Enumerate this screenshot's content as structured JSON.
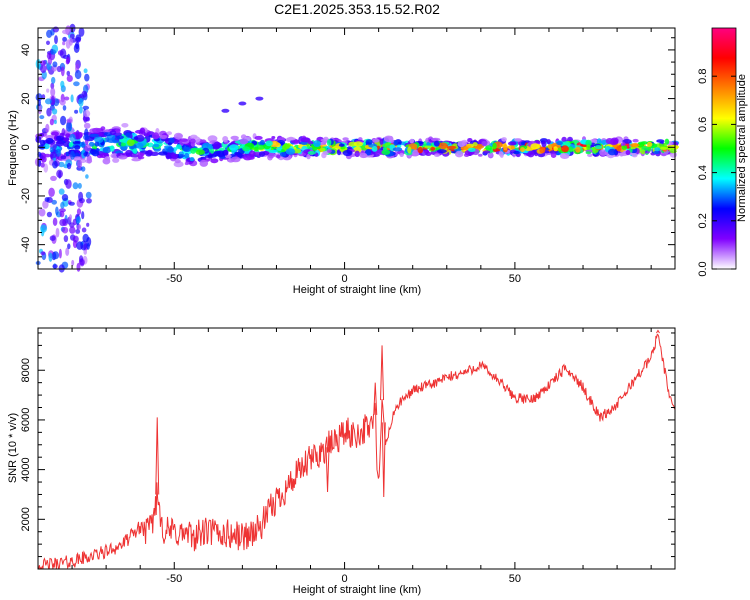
{
  "figure_title": "C2E1.2025.353.15.52.R02",
  "chart_data": [
    {
      "type": "heatmap",
      "title": "",
      "xlabel": "Height of straight line (km)",
      "ylabel": "Frequency (Hz)",
      "xlim": [
        -90,
        97
      ],
      "ylim": [
        -50,
        49
      ],
      "xticks": [
        -50,
        0,
        50
      ],
      "yticks": [
        -40,
        -20,
        0,
        20,
        40
      ],
      "colorbar": {
        "label": "Normalized spectral amplitude",
        "range": [
          0,
          1
        ],
        "ticks": [
          "0.0",
          "0.2",
          "0.4",
          "0.6",
          "0.8"
        ],
        "colors": [
          "#ffffff",
          "#8000ff",
          "#0000ff",
          "#00ffff",
          "#00ff00",
          "#ffff00",
          "#ff8000",
          "#ff0000",
          "#ff0080"
        ]
      },
      "ridge": [
        {
          "x": -85,
          "center": 0,
          "halfwidth": 5,
          "peak": 0.35
        },
        {
          "x": -75,
          "center": 1,
          "halfwidth": 5,
          "peak": 0.45
        },
        {
          "x": -65,
          "center": 2,
          "halfwidth": 5,
          "peak": 0.5
        },
        {
          "x": -55,
          "center": 1,
          "halfwidth": 4,
          "peak": 0.45
        },
        {
          "x": -45,
          "center": -2,
          "halfwidth": 4,
          "peak": 0.45
        },
        {
          "x": -35,
          "center": -1,
          "halfwidth": 3,
          "peak": 0.5
        },
        {
          "x": -25,
          "center": 0,
          "halfwidth": 3,
          "peak": 0.6
        },
        {
          "x": -15,
          "center": 0,
          "halfwidth": 2.5,
          "peak": 0.65
        },
        {
          "x": -5,
          "center": 0,
          "halfwidth": 2,
          "peak": 0.75
        },
        {
          "x": 5,
          "center": 0,
          "halfwidth": 2,
          "peak": 0.75
        },
        {
          "x": 15,
          "center": 0,
          "halfwidth": 2,
          "peak": 0.8
        },
        {
          "x": 30,
          "center": 0,
          "halfwidth": 1.8,
          "peak": 0.85
        },
        {
          "x": 50,
          "center": 0,
          "halfwidth": 1.8,
          "peak": 0.85
        },
        {
          "x": 70,
          "center": 0,
          "halfwidth": 1.8,
          "peak": 0.85
        },
        {
          "x": 95,
          "center": 0,
          "halfwidth": 1.8,
          "peak": 0.85
        }
      ],
      "scatter": {
        "x_range": [
          -90,
          -75
        ],
        "y_range": [
          -50,
          49
        ],
        "amplitude_range": [
          0.05,
          0.35
        ]
      },
      "side_feature": [
        {
          "x": -35,
          "y": 15
        },
        {
          "x": -30,
          "y": 18
        },
        {
          "x": -25,
          "y": 20
        }
      ]
    },
    {
      "type": "line",
      "title": "",
      "xlabel": "Height of straight line (km)",
      "ylabel": "SNR (10 * v/v)",
      "xlim": [
        -90,
        97
      ],
      "ylim": [
        0,
        9700
      ],
      "xticks": [
        -50,
        0,
        50
      ],
      "yticks": [
        2000,
        4000,
        6000,
        8000
      ],
      "color": "#ee3333",
      "series": [
        {
          "x": [
            -90,
            -85,
            -80,
            -75,
            -70,
            -65,
            -60,
            -57,
            -55,
            -53,
            -50,
            -45,
            -40,
            -35,
            -30,
            -25,
            -20,
            -15,
            -10,
            -5,
            0,
            3,
            7,
            9,
            10,
            11,
            12,
            15,
            20,
            25,
            30,
            35,
            40,
            45,
            50,
            55,
            60,
            65,
            70,
            75,
            80,
            85,
            90,
            92,
            95,
            97
          ],
          "y": [
            100,
            200,
            300,
            500,
            700,
            1000,
            1700,
            1500,
            3000,
            1500,
            1500,
            1300,
            1500,
            1400,
            1300,
            1600,
            2800,
            3600,
            4400,
            4900,
            5500,
            5400,
            5700,
            6200,
            3000,
            6800,
            5000,
            6500,
            7200,
            7400,
            7700,
            7900,
            8200,
            7600,
            6900,
            6800,
            7400,
            8100,
            7300,
            6100,
            6600,
            7600,
            8500,
            9500,
            7200,
            6400
          ],
          "spikes": [
            {
              "x": -55,
              "y": 6100
            },
            {
              "x": 9,
              "y": 7500
            },
            {
              "x": 11,
              "y": 9000
            },
            {
              "x": 11.5,
              "y": 2900
            },
            {
              "x": -5,
              "y": 3100
            },
            {
              "x": 92,
              "y": 9600
            }
          ]
        }
      ]
    }
  ]
}
